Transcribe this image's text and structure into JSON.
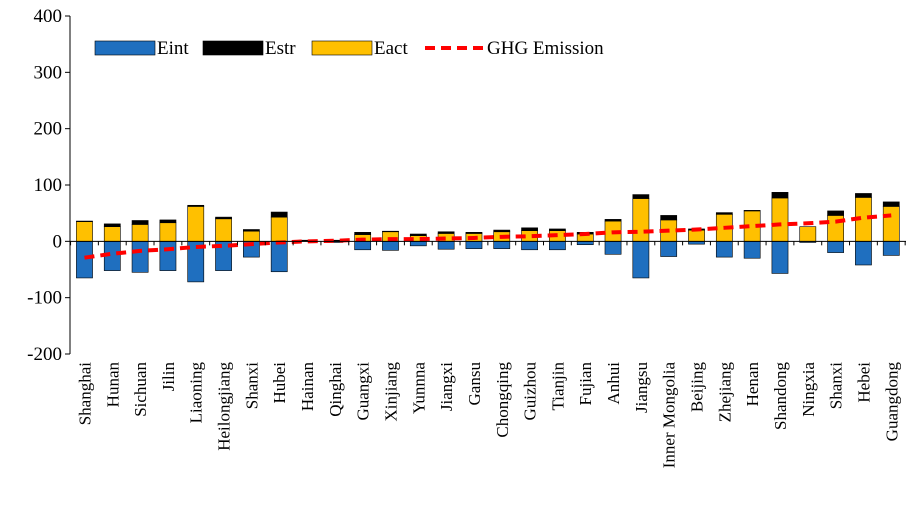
{
  "chart_data": {
    "type": "bar",
    "title": "",
    "xlabel": "",
    "ylabel": "",
    "ylim": [
      -200,
      400
    ],
    "yticks": [
      -200,
      -100,
      0,
      100,
      200,
      300,
      400
    ],
    "grid": false,
    "legend_position": "top-left",
    "categories": [
      "Shanghai",
      "Hunan",
      "Sichuan",
      "Jilin",
      "Liaoning",
      "Heilongjiang",
      "Shanxi",
      "Hubei",
      "Hainan",
      "Qinghai",
      "Guangxi",
      "Xinjiang",
      "Yunnna",
      "Jiangxi",
      "Gansu",
      "Chongqing",
      "Guizhou",
      "Tianjin",
      "Fujian",
      "Anhui",
      "Jiangsu",
      "Inner Mongolia",
      "Beijing",
      "Zhejiang",
      "Henan",
      "Shandong",
      "Ningxia",
      "Shanxi",
      "Hebei",
      "Guangdong"
    ],
    "series": [
      {
        "name": "Eint",
        "kind": "bar",
        "color": "#1f6fbf",
        "values": [
          -65,
          -52,
          -55,
          -52,
          -72,
          -52,
          -28,
          -54,
          0,
          -2,
          -15,
          -16,
          -8,
          -14,
          -13,
          -13,
          -15,
          -15,
          -6,
          -23,
          -65,
          -27,
          -5,
          -28,
          -30,
          -57,
          -2,
          -20,
          -42,
          -25
        ]
      },
      {
        "name": "Estr",
        "kind": "bar",
        "color": "#000000",
        "values": [
          1,
          5,
          7,
          5,
          2,
          3,
          3,
          9,
          1,
          1,
          4,
          1,
          3,
          3,
          2,
          3,
          5,
          3,
          3,
          3,
          7,
          8,
          2,
          3,
          1,
          10,
          0,
          8,
          7,
          8
        ]
      },
      {
        "name": "Eact",
        "kind": "bar",
        "color": "#ffc000",
        "values": [
          35,
          26,
          30,
          33,
          62,
          40,
          18,
          43,
          1,
          1,
          12,
          17,
          10,
          14,
          14,
          17,
          19,
          19,
          13,
          36,
          76,
          38,
          20,
          48,
          54,
          77,
          26,
          46,
          78,
          62
        ]
      },
      {
        "name": "GHG Emission",
        "kind": "line",
        "color": "#ff0000",
        "values": [
          -29,
          -22,
          -17,
          -14,
          -10,
          -8,
          -5,
          -2,
          0,
          1,
          3,
          4,
          4,
          5,
          6,
          8,
          9,
          11,
          13,
          16,
          17,
          19,
          21,
          24,
          27,
          30,
          32,
          35,
          42,
          46
        ]
      }
    ]
  }
}
